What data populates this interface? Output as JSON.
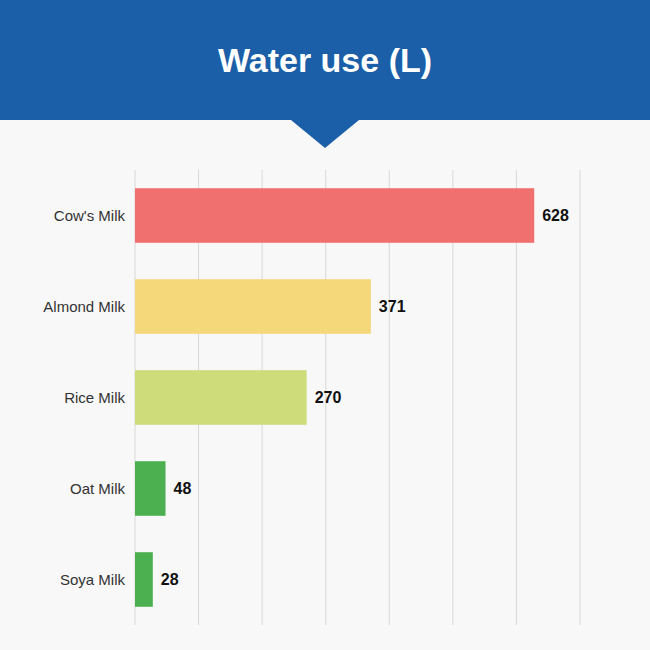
{
  "chart_data": {
    "type": "bar",
    "orientation": "horizontal",
    "title": "Water use (L)",
    "categories": [
      "Cow's Milk",
      "Almond Milk",
      "Rice Milk",
      "Oat Milk",
      "Soya Milk"
    ],
    "values": [
      628,
      371,
      270,
      48,
      28
    ],
    "colors": [
      "#f07070",
      "#f5d87a",
      "#cedd7a",
      "#4caf50",
      "#4caf50"
    ],
    "xlim": [
      0,
      700
    ],
    "xticks": [
      0,
      100,
      200,
      300,
      400,
      500,
      600,
      700
    ],
    "grid": true,
    "data_labels": true,
    "tick_labels": "y"
  }
}
